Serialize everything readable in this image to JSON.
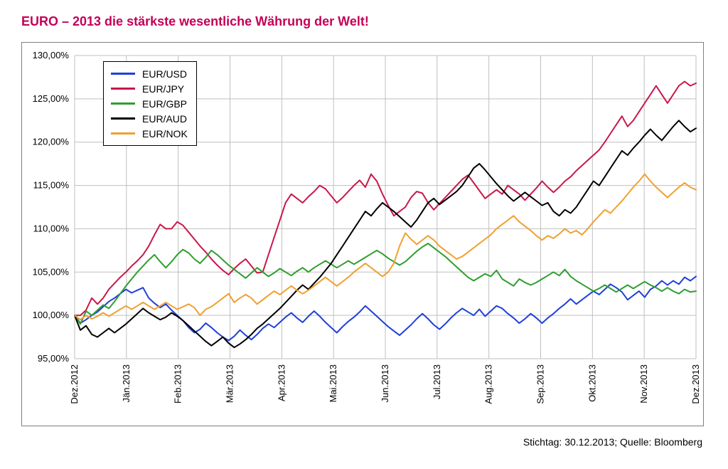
{
  "title": "EURO – 2013 die stärkste wesentliche Währung der Welt!",
  "title_color": "#c40058",
  "source_line": "Stichtag: 30.12.2013; Quelle: Bloomberg",
  "chart": {
    "type": "line",
    "background_color": "#ffffff",
    "border_color": "#808080",
    "grid_color": "#bfbfbf",
    "ylim": [
      95,
      130
    ],
    "ytick_step": 5,
    "ytick_format_suffix": ",00%",
    "y_ticks": [
      95,
      100,
      105,
      110,
      115,
      120,
      125,
      130
    ],
    "x_labels": [
      "Dez.2012",
      "Jän.2013",
      "Feb.2013",
      "Mär.2013",
      "Apr.2013",
      "Mai.2013",
      "Jun.2013",
      "Jul.2013",
      "Aug.2013",
      "Sep.2013",
      "Okt.2013",
      "Nov.2013",
      "Dez.2013"
    ],
    "line_width": 2,
    "label_fontsize": 13,
    "legend": {
      "border_color": "#000000",
      "position": "top-left-inside",
      "items": [
        {
          "label": "EUR/USD",
          "color": "#2040d8"
        },
        {
          "label": "EUR/JPY",
          "color": "#c8184a"
        },
        {
          "label": "EUR/GBP",
          "color": "#2f9e2f"
        },
        {
          "label": "EUR/AUD",
          "color": "#000000"
        },
        {
          "label": "EUR/NOK",
          "color": "#f0a030"
        }
      ]
    },
    "series": [
      {
        "name": "EUR/USD",
        "color": "#2040d8",
        "y": [
          100.0,
          99.1,
          99.5,
          100.0,
          100.4,
          101.0,
          101.6,
          102.0,
          102.5,
          103.0,
          102.6,
          102.9,
          103.2,
          102.0,
          101.4,
          100.9,
          101.3,
          100.6,
          100.0,
          99.4,
          98.6,
          98.0,
          98.4,
          99.1,
          98.6,
          98.0,
          97.5,
          97.1,
          97.6,
          98.3,
          97.7,
          97.2,
          97.8,
          98.5,
          99.0,
          98.6,
          99.2,
          99.8,
          100.3,
          99.7,
          99.2,
          99.9,
          100.5,
          99.9,
          99.2,
          98.6,
          98.0,
          98.7,
          99.3,
          99.8,
          100.4,
          101.1,
          100.5,
          99.9,
          99.3,
          98.7,
          98.2,
          97.7,
          98.3,
          98.9,
          99.6,
          100.2,
          99.6,
          98.9,
          98.4,
          99.0,
          99.7,
          100.3,
          100.8,
          100.4,
          100.0,
          100.7,
          99.9,
          100.5,
          101.1,
          100.8,
          100.2,
          99.7,
          99.1,
          99.6,
          100.2,
          99.7,
          99.1,
          99.7,
          100.2,
          100.8,
          101.3,
          101.9,
          101.3,
          101.8,
          102.3,
          102.8,
          102.4,
          103.0,
          103.6,
          103.2,
          102.7,
          101.8,
          102.3,
          102.8,
          102.1,
          103.0,
          103.4,
          104.0,
          103.5,
          104.0,
          103.6,
          104.4,
          104.0,
          104.5
        ]
      },
      {
        "name": "EUR/JPY",
        "color": "#c8184a",
        "y": [
          100.0,
          100.0,
          100.6,
          102.0,
          101.3,
          102.0,
          103.0,
          103.7,
          104.4,
          105.0,
          105.7,
          106.3,
          107.0,
          108.0,
          109.3,
          110.5,
          110.0,
          110.0,
          110.8,
          110.4,
          109.6,
          108.8,
          108.0,
          107.3,
          106.5,
          105.8,
          105.2,
          104.7,
          105.4,
          106.0,
          106.5,
          105.7,
          104.9,
          105.0,
          107.0,
          109.0,
          111.0,
          113.0,
          114.0,
          113.5,
          113.0,
          113.7,
          114.3,
          115.0,
          114.6,
          113.8,
          113.0,
          113.6,
          114.3,
          115.0,
          115.6,
          114.8,
          116.3,
          115.5,
          114.0,
          112.7,
          111.5,
          112.0,
          112.5,
          113.6,
          114.3,
          114.1,
          113.0,
          112.2,
          112.9,
          113.6,
          114.3,
          115.0,
          115.7,
          116.2,
          115.3,
          114.4,
          113.5,
          114.0,
          114.5,
          114.0,
          115.0,
          114.5,
          114.0,
          113.3,
          114.0,
          114.7,
          115.5,
          114.8,
          114.2,
          114.8,
          115.5,
          116.0,
          116.7,
          117.3,
          117.9,
          118.5,
          119.1,
          120.0,
          121.0,
          122.0,
          123.0,
          121.8,
          122.5,
          123.5,
          124.5,
          125.5,
          126.5,
          125.5,
          124.5,
          125.5,
          126.5,
          127.0,
          126.5,
          126.8
        ]
      },
      {
        "name": "EUR/GBP",
        "color": "#2f9e2f",
        "y": [
          100.0,
          99.0,
          100.5,
          100.0,
          100.6,
          101.2,
          100.8,
          101.6,
          102.5,
          103.4,
          104.2,
          105.0,
          105.7,
          106.4,
          107.0,
          106.2,
          105.5,
          106.2,
          107.0,
          107.6,
          107.2,
          106.5,
          106.0,
          106.7,
          107.5,
          107.0,
          106.4,
          105.8,
          105.3,
          104.8,
          104.3,
          104.9,
          105.5,
          105.0,
          104.5,
          104.9,
          105.4,
          105.0,
          104.6,
          105.1,
          105.5,
          105.0,
          105.5,
          105.9,
          106.3,
          105.9,
          105.5,
          105.9,
          106.3,
          105.9,
          106.3,
          106.7,
          107.1,
          107.5,
          107.1,
          106.6,
          106.2,
          105.8,
          106.2,
          106.8,
          107.4,
          107.9,
          108.3,
          107.8,
          107.3,
          106.8,
          106.2,
          105.6,
          105.0,
          104.4,
          104.0,
          104.4,
          104.8,
          104.5,
          105.2,
          104.2,
          103.8,
          103.4,
          104.2,
          103.8,
          103.5,
          103.8,
          104.2,
          104.6,
          105.0,
          104.6,
          105.3,
          104.5,
          104.0,
          103.6,
          103.2,
          102.8,
          103.1,
          103.5,
          103.1,
          102.7,
          103.1,
          103.5,
          103.1,
          103.5,
          103.9,
          103.5,
          103.2,
          102.8,
          103.2,
          102.8,
          102.5,
          103.0,
          102.7,
          102.8
        ]
      },
      {
        "name": "EUR/AUD",
        "color": "#000000",
        "y": [
          100.0,
          98.3,
          98.8,
          97.8,
          97.5,
          98.0,
          98.5,
          98.0,
          98.5,
          99.0,
          99.6,
          100.2,
          100.8,
          100.3,
          99.9,
          99.5,
          99.8,
          100.3,
          99.9,
          99.4,
          98.8,
          98.2,
          97.6,
          97.0,
          96.5,
          97.0,
          97.5,
          96.8,
          96.3,
          96.7,
          97.2,
          97.8,
          98.5,
          99.0,
          99.6,
          100.2,
          100.8,
          101.5,
          102.2,
          102.9,
          103.5,
          103.0,
          103.7,
          104.4,
          105.2,
          106.0,
          107.0,
          108.0,
          109.0,
          110.0,
          111.0,
          112.0,
          111.5,
          112.3,
          113.0,
          112.5,
          112.0,
          111.4,
          110.8,
          110.2,
          111.0,
          112.0,
          113.0,
          113.5,
          112.8,
          113.3,
          113.8,
          114.3,
          115.0,
          116.0,
          117.0,
          117.5,
          116.8,
          116.0,
          115.2,
          114.5,
          113.8,
          113.2,
          113.7,
          114.2,
          113.7,
          113.2,
          112.7,
          113.0,
          112.0,
          111.5,
          112.2,
          111.8,
          112.5,
          113.5,
          114.5,
          115.5,
          115.0,
          116.0,
          117.0,
          118.0,
          119.0,
          118.5,
          119.3,
          120.0,
          120.8,
          121.5,
          120.8,
          120.2,
          121.0,
          121.8,
          122.5,
          121.8,
          121.2,
          121.6
        ]
      },
      {
        "name": "EUR/NOK",
        "color": "#f0a030",
        "y": [
          100.0,
          99.5,
          100.0,
          99.6,
          99.9,
          100.3,
          99.9,
          100.3,
          100.7,
          101.1,
          100.7,
          101.1,
          101.5,
          101.1,
          100.7,
          101.1,
          101.5,
          101.1,
          100.7,
          101.0,
          101.3,
          100.9,
          100.0,
          100.7,
          101.0,
          101.5,
          102.0,
          102.5,
          101.5,
          102.0,
          102.4,
          102.0,
          101.3,
          101.8,
          102.3,
          102.8,
          102.4,
          102.9,
          103.4,
          102.9,
          102.5,
          102.9,
          103.4,
          103.9,
          104.4,
          103.9,
          103.4,
          103.9,
          104.4,
          105.0,
          105.5,
          106.0,
          105.5,
          105.0,
          104.5,
          105.0,
          106.0,
          108.0,
          109.5,
          108.8,
          108.2,
          108.7,
          109.2,
          108.7,
          108.0,
          107.5,
          107.0,
          106.5,
          106.8,
          107.3,
          107.8,
          108.3,
          108.8,
          109.3,
          110.0,
          110.5,
          111.0,
          111.5,
          110.8,
          110.3,
          109.8,
          109.2,
          108.7,
          109.2,
          108.9,
          109.4,
          110.0,
          109.5,
          109.8,
          109.3,
          110.0,
          110.8,
          111.5,
          112.2,
          111.8,
          112.5,
          113.2,
          114.0,
          114.8,
          115.5,
          116.3,
          115.5,
          114.8,
          114.2,
          113.6,
          114.2,
          114.8,
          115.3,
          114.8,
          114.5
        ]
      }
    ]
  }
}
